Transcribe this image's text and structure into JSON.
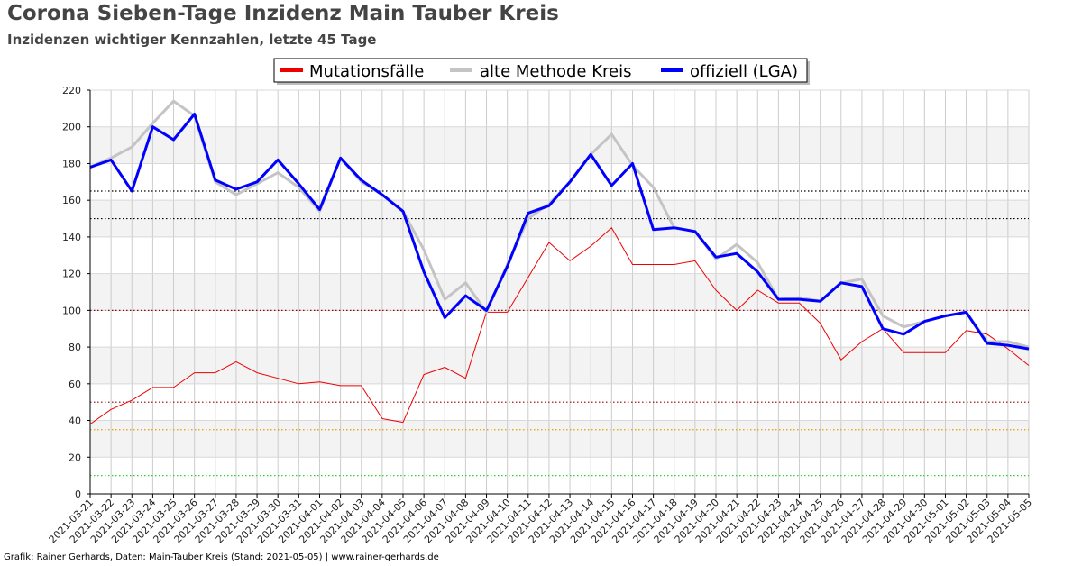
{
  "title": "Corona Sieben-Tage Inzidenz Main Tauber Kreis",
  "subtitle": "Inzidenzen wichtiger Kennzahlen, letzte 45 Tage",
  "footer": "Grafik: Rainer Gerhards, Daten: Main-Tauber Kreis (Stand: 2021-05-05) | www.rainer-gerhards.de",
  "chart_data": {
    "type": "line",
    "ylim": [
      0,
      220
    ],
    "yticks": [
      0,
      20,
      40,
      60,
      80,
      100,
      120,
      140,
      160,
      180,
      200,
      220
    ],
    "grid": true,
    "legend_position": "top-center",
    "x": [
      "2021-03-21",
      "2021-03-22",
      "2021-03-23",
      "2021-03-24",
      "2021-03-25",
      "2021-03-26",
      "2021-03-27",
      "2021-03-28",
      "2021-03-29",
      "2021-03-30",
      "2021-03-31",
      "2021-04-01",
      "2021-04-02",
      "2021-04-03",
      "2021-04-04",
      "2021-04-05",
      "2021-04-06",
      "2021-04-07",
      "2021-04-08",
      "2021-04-09",
      "2021-04-10",
      "2021-04-11",
      "2021-04-12",
      "2021-04-13",
      "2021-04-14",
      "2021-04-15",
      "2021-04-16",
      "2021-04-17",
      "2021-04-18",
      "2021-04-19",
      "2021-04-20",
      "2021-04-21",
      "2021-04-22",
      "2021-04-23",
      "2021-04-24",
      "2021-04-25",
      "2021-04-26",
      "2021-04-27",
      "2021-04-28",
      "2021-04-29",
      "2021-04-30",
      "2021-05-01",
      "2021-05-02",
      "2021-05-03",
      "2021-05-04",
      "2021-05-05"
    ],
    "series": [
      {
        "name": "Mutationsfälle",
        "color": "#ee0000",
        "width": 1,
        "values": [
          38,
          46,
          51,
          58,
          58,
          66,
          66,
          72,
          66,
          63,
          60,
          61,
          59,
          59,
          41,
          39,
          65,
          69,
          63,
          99,
          99,
          118,
          137,
          127,
          135,
          145,
          125,
          125,
          125,
          127,
          111,
          100,
          111,
          104,
          104,
          93,
          73,
          83,
          90,
          77,
          77,
          77,
          89,
          87,
          79,
          70
        ]
      },
      {
        "name": "alte Methode Kreis",
        "color": "#c4c4c4",
        "width": 3,
        "values": [
          178,
          183,
          189,
          202,
          214,
          206,
          170,
          163,
          169,
          175,
          167,
          154,
          183,
          170,
          163,
          154,
          133,
          106,
          115,
          99,
          125,
          150,
          158,
          170,
          185,
          196,
          179,
          167,
          145,
          143,
          128,
          136,
          126,
          106,
          107,
          105,
          115,
          117,
          97,
          91,
          94,
          97,
          99,
          83,
          83,
          80
        ]
      },
      {
        "name": "offiziell (LGA)",
        "color": "#0000ff",
        "width": 3,
        "values": [
          178,
          182,
          165,
          200,
          193,
          207,
          171,
          166,
          170,
          182,
          169,
          155,
          183,
          171,
          163,
          154,
          121,
          96,
          108,
          100,
          124,
          153,
          157,
          170,
          185,
          168,
          180,
          144,
          145,
          143,
          129,
          131,
          121,
          106,
          106,
          105,
          115,
          113,
          90,
          87,
          94,
          97,
          99,
          82,
          81,
          79
        ]
      }
    ],
    "reference_lines": [
      {
        "value": 165,
        "color": "#000000"
      },
      {
        "value": 150,
        "color": "#000000"
      },
      {
        "value": 100,
        "color": "#990000"
      },
      {
        "value": 50,
        "color": "#990000"
      },
      {
        "value": 35,
        "color": "#e0a000"
      },
      {
        "value": 10,
        "color": "#33cc33"
      }
    ]
  }
}
